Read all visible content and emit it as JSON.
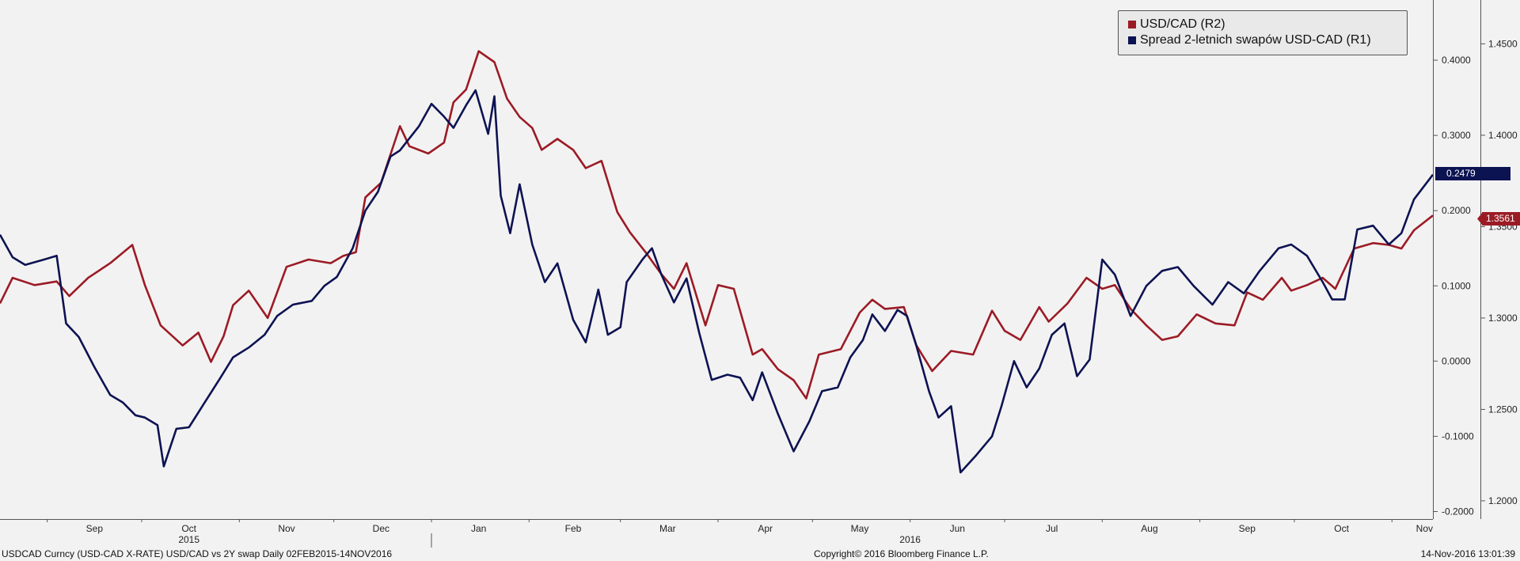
{
  "chart_data": {
    "type": "line",
    "x_range": [
      "2015-08-17",
      "2016-11-14"
    ],
    "x_month_labels": [
      "Sep",
      "Oct",
      "Nov",
      "Dec",
      "Jan",
      "Feb",
      "Mar",
      "Apr",
      "May",
      "Jun",
      "Jul",
      "Aug",
      "Sep",
      "Oct",
      "Nov"
    ],
    "x_year_labels": [
      "2015",
      "2016"
    ],
    "y_left": {
      "ylim": [
        -0.21,
        0.48
      ],
      "ticks": [
        "0.4000",
        "0.3000",
        "0.2000",
        "0.1000",
        "0.0000",
        "-0.1000",
        "-0.2000"
      ]
    },
    "y_right": {
      "ylim": [
        1.19,
        1.474
      ],
      "ticks": [
        "1.4500",
        "1.4000",
        "1.3500",
        "1.3000",
        "1.2500",
        "1.2000"
      ]
    },
    "grid": false,
    "legend_position": "top-right",
    "series": [
      {
        "name": "USD/CAD (R2)",
        "axis": "R2",
        "color": "#9b1b25",
        "last_value": "1.3561",
        "points": [
          [
            "2015-08-17",
            1.308
          ],
          [
            "2015-08-21",
            1.322
          ],
          [
            "2015-08-28",
            1.318
          ],
          [
            "2015-09-04",
            1.32
          ],
          [
            "2015-09-08",
            1.312
          ],
          [
            "2015-09-14",
            1.322
          ],
          [
            "2015-09-21",
            1.33
          ],
          [
            "2015-09-28",
            1.34
          ],
          [
            "2015-10-02",
            1.318
          ],
          [
            "2015-10-07",
            1.296
          ],
          [
            "2015-10-14",
            1.285
          ],
          [
            "2015-10-19",
            1.292
          ],
          [
            "2015-10-23",
            1.276
          ],
          [
            "2015-10-27",
            1.29
          ],
          [
            "2015-10-30",
            1.307
          ],
          [
            "2015-11-04",
            1.315
          ],
          [
            "2015-11-10",
            1.3
          ],
          [
            "2015-11-16",
            1.328
          ],
          [
            "2015-11-23",
            1.332
          ],
          [
            "2015-11-30",
            1.33
          ],
          [
            "2015-12-04",
            1.334
          ],
          [
            "2015-12-08",
            1.336
          ],
          [
            "2015-12-11",
            1.366
          ],
          [
            "2015-12-16",
            1.374
          ],
          [
            "2015-12-22",
            1.405
          ],
          [
            "2015-12-25",
            1.394
          ],
          [
            "2015-12-31",
            1.39
          ],
          [
            "2016-01-05",
            1.396
          ],
          [
            "2016-01-08",
            1.418
          ],
          [
            "2016-01-12",
            1.425
          ],
          [
            "2016-01-16",
            1.446
          ],
          [
            "2016-01-21",
            1.44
          ],
          [
            "2016-01-25",
            1.42
          ],
          [
            "2016-01-29",
            1.41
          ],
          [
            "2016-02-02",
            1.404
          ],
          [
            "2016-02-05",
            1.392
          ],
          [
            "2016-02-10",
            1.398
          ],
          [
            "2016-02-15",
            1.392
          ],
          [
            "2016-02-19",
            1.382
          ],
          [
            "2016-02-24",
            1.386
          ],
          [
            "2016-02-29",
            1.358
          ],
          [
            "2016-03-04",
            1.347
          ],
          [
            "2016-03-09",
            1.336
          ],
          [
            "2016-03-14",
            1.324
          ],
          [
            "2016-03-18",
            1.316
          ],
          [
            "2016-03-22",
            1.33
          ],
          [
            "2016-03-28",
            1.296
          ],
          [
            "2016-04-01",
            1.318
          ],
          [
            "2016-04-06",
            1.316
          ],
          [
            "2016-04-12",
            1.28
          ],
          [
            "2016-04-15",
            1.283
          ],
          [
            "2016-04-20",
            1.272
          ],
          [
            "2016-04-25",
            1.266
          ],
          [
            "2016-04-29",
            1.256
          ],
          [
            "2016-05-03",
            1.28
          ],
          [
            "2016-05-10",
            1.283
          ],
          [
            "2016-05-16",
            1.303
          ],
          [
            "2016-05-20",
            1.31
          ],
          [
            "2016-05-24",
            1.305
          ],
          [
            "2016-05-30",
            1.306
          ],
          [
            "2016-06-03",
            1.285
          ],
          [
            "2016-06-08",
            1.271
          ],
          [
            "2016-06-14",
            1.282
          ],
          [
            "2016-06-21",
            1.28
          ],
          [
            "2016-06-27",
            1.304
          ],
          [
            "2016-07-01",
            1.293
          ],
          [
            "2016-07-06",
            1.288
          ],
          [
            "2016-07-12",
            1.306
          ],
          [
            "2016-07-15",
            1.298
          ],
          [
            "2016-07-21",
            1.308
          ],
          [
            "2016-07-27",
            1.322
          ],
          [
            "2016-08-01",
            1.316
          ],
          [
            "2016-08-05",
            1.318
          ],
          [
            "2016-08-10",
            1.305
          ],
          [
            "2016-08-15",
            1.296
          ],
          [
            "2016-08-20",
            1.288
          ],
          [
            "2016-08-25",
            1.29
          ],
          [
            "2016-08-31",
            1.302
          ],
          [
            "2016-09-06",
            1.297
          ],
          [
            "2016-09-12",
            1.296
          ],
          [
            "2016-09-16",
            1.314
          ],
          [
            "2016-09-21",
            1.31
          ],
          [
            "2016-09-27",
            1.322
          ],
          [
            "2016-09-30",
            1.315
          ],
          [
            "2016-10-05",
            1.318
          ],
          [
            "2016-10-10",
            1.322
          ],
          [
            "2016-10-14",
            1.316
          ],
          [
            "2016-10-20",
            1.338
          ],
          [
            "2016-10-26",
            1.341
          ],
          [
            "2016-10-31",
            1.34
          ],
          [
            "2016-11-04",
            1.338
          ],
          [
            "2016-11-08",
            1.348
          ],
          [
            "2016-11-14",
            1.3561
          ]
        ]
      },
      {
        "name": "Spread 2-letnich swapów USD-CAD (R1)",
        "axis": "R1",
        "color": "#0c1352",
        "last_value": "0.2479",
        "points": [
          [
            "2015-08-17",
            0.168
          ],
          [
            "2015-08-21",
            0.138
          ],
          [
            "2015-08-25",
            0.128
          ],
          [
            "2015-08-31",
            0.135
          ],
          [
            "2015-09-04",
            0.14
          ],
          [
            "2015-09-07",
            0.05
          ],
          [
            "2015-09-11",
            0.032
          ],
          [
            "2015-09-16",
            -0.008
          ],
          [
            "2015-09-21",
            -0.045
          ],
          [
            "2015-09-25",
            -0.055
          ],
          [
            "2015-09-29",
            -0.072
          ],
          [
            "2015-10-02",
            -0.075
          ],
          [
            "2015-10-06",
            -0.085
          ],
          [
            "2015-10-08",
            -0.14
          ],
          [
            "2015-10-12",
            -0.09
          ],
          [
            "2015-10-16",
            -0.088
          ],
          [
            "2015-10-21",
            -0.055
          ],
          [
            "2015-10-26",
            -0.022
          ],
          [
            "2015-10-30",
            0.005
          ],
          [
            "2015-11-04",
            0.018
          ],
          [
            "2015-11-09",
            0.035
          ],
          [
            "2015-11-13",
            0.06
          ],
          [
            "2015-11-18",
            0.075
          ],
          [
            "2015-11-24",
            0.08
          ],
          [
            "2015-11-28",
            0.1
          ],
          [
            "2015-12-02",
            0.112
          ],
          [
            "2015-12-07",
            0.15
          ],
          [
            "2015-12-11",
            0.2
          ],
          [
            "2015-12-15",
            0.225
          ],
          [
            "2015-12-19",
            0.272
          ],
          [
            "2015-12-22",
            0.28
          ],
          [
            "2015-12-28",
            0.312
          ],
          [
            "2016-01-01",
            0.342
          ],
          [
            "2016-01-05",
            0.325
          ],
          [
            "2016-01-08",
            0.31
          ],
          [
            "2016-01-12",
            0.34
          ],
          [
            "2016-01-15",
            0.36
          ],
          [
            "2016-01-19",
            0.302
          ],
          [
            "2016-01-21",
            0.352
          ],
          [
            "2016-01-23",
            0.22
          ],
          [
            "2016-01-26",
            0.17
          ],
          [
            "2016-01-29",
            0.235
          ],
          [
            "2016-02-02",
            0.155
          ],
          [
            "2016-02-06",
            0.105
          ],
          [
            "2016-02-10",
            0.13
          ],
          [
            "2016-02-15",
            0.055
          ],
          [
            "2016-02-19",
            0.025
          ],
          [
            "2016-02-23",
            0.095
          ],
          [
            "2016-02-26",
            0.035
          ],
          [
            "2016-03-01",
            0.045
          ],
          [
            "2016-03-03",
            0.105
          ],
          [
            "2016-03-08",
            0.135
          ],
          [
            "2016-03-11",
            0.15
          ],
          [
            "2016-03-14",
            0.115
          ],
          [
            "2016-03-18",
            0.078
          ],
          [
            "2016-03-22",
            0.11
          ],
          [
            "2016-03-26",
            0.038
          ],
          [
            "2016-03-30",
            -0.025
          ],
          [
            "2016-04-04",
            -0.018
          ],
          [
            "2016-04-08",
            -0.022
          ],
          [
            "2016-04-12",
            -0.052
          ],
          [
            "2016-04-15",
            -0.015
          ],
          [
            "2016-04-20",
            -0.07
          ],
          [
            "2016-04-25",
            -0.12
          ],
          [
            "2016-04-30",
            -0.08
          ],
          [
            "2016-05-04",
            -0.04
          ],
          [
            "2016-05-09",
            -0.035
          ],
          [
            "2016-05-13",
            0.005
          ],
          [
            "2016-05-17",
            0.028
          ],
          [
            "2016-05-20",
            0.062
          ],
          [
            "2016-05-24",
            0.04
          ],
          [
            "2016-05-28",
            0.068
          ],
          [
            "2016-05-31",
            0.06
          ],
          [
            "2016-06-03",
            0.02
          ],
          [
            "2016-06-07",
            -0.04
          ],
          [
            "2016-06-10",
            -0.075
          ],
          [
            "2016-06-14",
            -0.06
          ],
          [
            "2016-06-17",
            -0.148
          ],
          [
            "2016-06-22",
            -0.125
          ],
          [
            "2016-06-27",
            -0.1
          ],
          [
            "2016-06-30",
            -0.06
          ],
          [
            "2016-07-04",
            0.0
          ],
          [
            "2016-07-08",
            -0.035
          ],
          [
            "2016-07-12",
            -0.01
          ],
          [
            "2016-07-16",
            0.035
          ],
          [
            "2016-07-20",
            0.05
          ],
          [
            "2016-07-24",
            -0.02
          ],
          [
            "2016-07-28",
            0.002
          ],
          [
            "2016-08-01",
            0.135
          ],
          [
            "2016-08-05",
            0.115
          ],
          [
            "2016-08-10",
            0.06
          ],
          [
            "2016-08-15",
            0.1
          ],
          [
            "2016-08-20",
            0.12
          ],
          [
            "2016-08-25",
            0.125
          ],
          [
            "2016-08-30",
            0.1
          ],
          [
            "2016-09-05",
            0.075
          ],
          [
            "2016-09-10",
            0.105
          ],
          [
            "2016-09-15",
            0.09
          ],
          [
            "2016-09-20",
            0.12
          ],
          [
            "2016-09-26",
            0.15
          ],
          [
            "2016-09-30",
            0.155
          ],
          [
            "2016-10-05",
            0.14
          ],
          [
            "2016-10-10",
            0.105
          ],
          [
            "2016-10-13",
            0.082
          ],
          [
            "2016-10-17",
            0.082
          ],
          [
            "2016-10-21",
            0.175
          ],
          [
            "2016-10-26",
            0.18
          ],
          [
            "2016-10-31",
            0.155
          ],
          [
            "2016-11-04",
            0.17
          ],
          [
            "2016-11-08",
            0.215
          ],
          [
            "2016-11-14",
            0.2479
          ]
        ]
      }
    ]
  },
  "legend": {
    "items": [
      {
        "label": "USD/CAD (R2)",
        "color": "#9b1b25"
      },
      {
        "label": "Spread 2-letnich swapów USD-CAD (R1)",
        "color": "#0c1352"
      }
    ]
  },
  "tags": {
    "spread_last": "0.2479",
    "usdcad_last": "1.3561"
  },
  "footer": {
    "left": "USDCAD Curncy (USD-CAD X-RATE) USD/CAD vs 2Y swap  Daily 02FEB2015-14NOV2016",
    "center": "Copyright© 2016 Bloomberg Finance L.P.",
    "right": "14-Nov-2016 13:01:39"
  }
}
